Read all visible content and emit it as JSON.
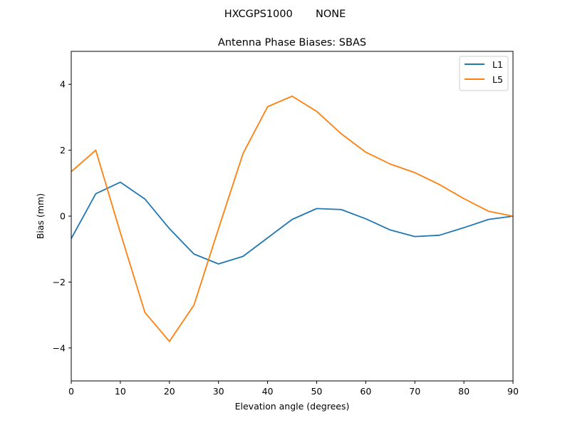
{
  "figure": {
    "suptitle": "HXCGPS1000       NONE"
  },
  "chart_data": {
    "type": "line",
    "title": "Antenna Phase Biases: SBAS",
    "xlabel": "Elevation angle (degrees)",
    "ylabel": "Bias (mm)",
    "xlim": [
      0,
      90
    ],
    "ylim": [
      -5,
      5
    ],
    "xticks": [
      0,
      10,
      20,
      30,
      40,
      50,
      60,
      70,
      80,
      90
    ],
    "yticks": [
      -4,
      -2,
      0,
      2,
      4
    ],
    "ytick_labels": [
      "−4",
      "−2",
      "0",
      "2",
      "4"
    ],
    "grid": false,
    "legend_position": "upper right",
    "x": [
      0,
      5,
      10,
      15,
      20,
      25,
      30,
      35,
      40,
      45,
      50,
      55,
      60,
      65,
      70,
      75,
      80,
      85,
      90
    ],
    "series": [
      {
        "name": "L1",
        "color": "#1f77b4",
        "values": [
          -0.68,
          0.68,
          1.03,
          0.52,
          -0.38,
          -1.15,
          -1.45,
          -1.22,
          -0.66,
          -0.1,
          0.23,
          0.2,
          -0.08,
          -0.42,
          -0.62,
          -0.58,
          -0.35,
          -0.1,
          0.0
        ]
      },
      {
        "name": "L5",
        "color": "#ff7f0e",
        "values": [
          1.35,
          2.0,
          -0.5,
          -2.92,
          -3.8,
          -2.7,
          -0.38,
          1.9,
          3.32,
          3.64,
          3.18,
          2.5,
          1.94,
          1.58,
          1.32,
          0.96,
          0.53,
          0.15,
          0.0
        ]
      }
    ]
  }
}
